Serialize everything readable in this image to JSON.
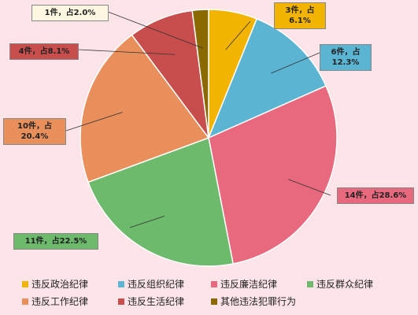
{
  "chart_data": {
    "type": "pie",
    "categories": [
      "违反政治纪律",
      "违反组织纪律",
      "违反廉洁纪律",
      "违反群众纪律",
      "违反工作纪律",
      "违反生活纪律",
      "其他违法犯罪行为"
    ],
    "values": [
      3,
      6,
      14,
      11,
      10,
      4,
      1
    ],
    "value_labels": [
      "3件，占6.1%",
      "6件，占12.3%",
      "14件，占28.6%",
      "11件，占22.5%",
      "10件，占20.4%",
      "4件，占8.1%",
      "1件，占2.0%"
    ],
    "colors": [
      "#f2b400",
      "#5cb4d3",
      "#e8697e",
      "#6dba6d",
      "#e98f5c",
      "#c84d4d",
      "#8a6a00"
    ]
  }
}
